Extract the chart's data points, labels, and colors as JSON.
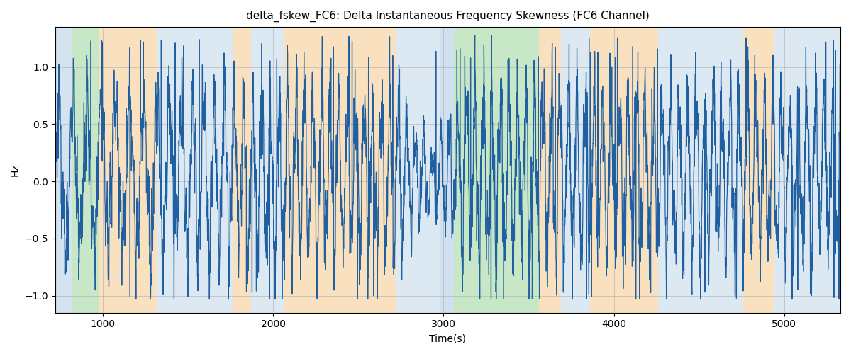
{
  "title": "delta_fskew_FC6: Delta Instantaneous Frequency Skewness (FC6 Channel)",
  "xlabel": "Time(s)",
  "ylabel": "Hz",
  "xlim": [
    720,
    5330
  ],
  "ylim": [
    -1.15,
    1.35
  ],
  "yticks": [
    -1.0,
    -0.5,
    0.0,
    0.5,
    1.0
  ],
  "xticks": [
    1000,
    2000,
    3000,
    4000,
    5000
  ],
  "line_color": "#2060a0",
  "line_width": 0.9,
  "background_bands": [
    {
      "xstart": 720,
      "xend": 820,
      "color": "#aac8e0",
      "alpha": 0.5
    },
    {
      "xstart": 820,
      "xend": 975,
      "color": "#90d090",
      "alpha": 0.5
    },
    {
      "xstart": 975,
      "xend": 1320,
      "color": "#f5c88a",
      "alpha": 0.55
    },
    {
      "xstart": 1320,
      "xend": 1760,
      "color": "#aac8e0",
      "alpha": 0.4
    },
    {
      "xstart": 1760,
      "xend": 1870,
      "color": "#f5c88a",
      "alpha": 0.55
    },
    {
      "xstart": 1870,
      "xend": 2060,
      "color": "#aac8e0",
      "alpha": 0.4
    },
    {
      "xstart": 2060,
      "xend": 2720,
      "color": "#f5c88a",
      "alpha": 0.55
    },
    {
      "xstart": 2720,
      "xend": 2980,
      "color": "#aac8e0",
      "alpha": 0.4
    },
    {
      "xstart": 2980,
      "xend": 3060,
      "color": "#aac8e0",
      "alpha": 0.55
    },
    {
      "xstart": 3060,
      "xend": 3560,
      "color": "#90d090",
      "alpha": 0.5
    },
    {
      "xstart": 3560,
      "xend": 3690,
      "color": "#f5c88a",
      "alpha": 0.55
    },
    {
      "xstart": 3690,
      "xend": 3860,
      "color": "#aac8e0",
      "alpha": 0.4
    },
    {
      "xstart": 3860,
      "xend": 4260,
      "color": "#f5c88a",
      "alpha": 0.55
    },
    {
      "xstart": 4260,
      "xend": 4760,
      "color": "#aac8e0",
      "alpha": 0.4
    },
    {
      "xstart": 4760,
      "xend": 4940,
      "color": "#f5c88a",
      "alpha": 0.55
    },
    {
      "xstart": 4940,
      "xend": 5330,
      "color": "#aac8e0",
      "alpha": 0.4
    }
  ],
  "grid_color": "#b0b0b0",
  "grid_alpha": 0.7,
  "grid_linewidth": 0.6,
  "figsize": [
    12,
    5
  ],
  "dpi": 100,
  "seed": 42,
  "n_points": 4600
}
